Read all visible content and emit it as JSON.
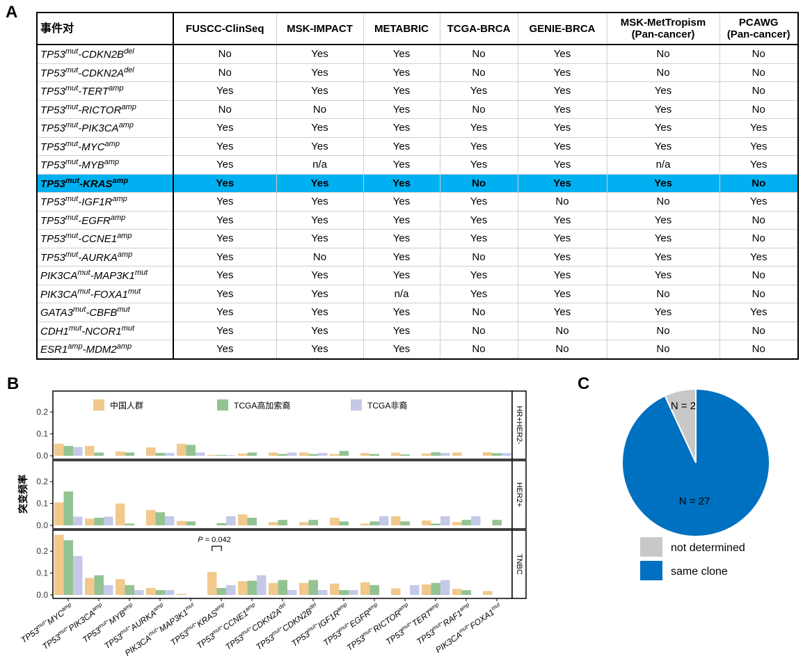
{
  "panels": {
    "a": "A",
    "b": "B",
    "c": "C"
  },
  "table": {
    "headers": [
      "事件对",
      [
        "FUSCC-ClinSeq"
      ],
      [
        "MSK-IMPACT"
      ],
      [
        "METABRIC"
      ],
      [
        "TCGA-BRCA"
      ],
      [
        "GENIE-BRCA"
      ],
      [
        "MSK-MetTropism",
        "(Pan-cancer)"
      ],
      [
        "PCAWG",
        "(Pan-cancer)"
      ]
    ],
    "rows": [
      {
        "a": "TP53",
        "as": "mut",
        "b": "CDKN2B",
        "bs": "del",
        "v": [
          "No",
          "Yes",
          "Yes",
          "No",
          "Yes",
          "No",
          "No"
        ]
      },
      {
        "a": "TP53",
        "as": "mut",
        "b": "CDKN2A",
        "bs": "del",
        "v": [
          "No",
          "Yes",
          "Yes",
          "No",
          "Yes",
          "No",
          "No"
        ]
      },
      {
        "a": "TP53",
        "as": "mut",
        "b": "TERT",
        "bs": "amp",
        "v": [
          "Yes",
          "Yes",
          "Yes",
          "Yes",
          "Yes",
          "Yes",
          "No"
        ]
      },
      {
        "a": "TP53",
        "as": "mut",
        "b": "RICTOR",
        "bs": "amp",
        "v": [
          "No",
          "No",
          "Yes",
          "No",
          "Yes",
          "Yes",
          "No"
        ]
      },
      {
        "a": "TP53",
        "as": "mut",
        "b": "PIK3CA",
        "bs": "amp",
        "v": [
          "Yes",
          "Yes",
          "Yes",
          "Yes",
          "Yes",
          "Yes",
          "Yes"
        ]
      },
      {
        "a": "TP53",
        "as": "mut",
        "b": "MYC",
        "bs": "amp",
        "v": [
          "Yes",
          "Yes",
          "Yes",
          "Yes",
          "Yes",
          "Yes",
          "Yes"
        ]
      },
      {
        "a": "TP53",
        "as": "mut",
        "b": "MYB",
        "bs": "amp",
        "v": [
          "Yes",
          "n/a",
          "Yes",
          "Yes",
          "Yes",
          "n/a",
          "Yes"
        ]
      },
      {
        "a": "TP53",
        "as": "mut",
        "b": "KRAS",
        "bs": "amp",
        "v": [
          "Yes",
          "Yes",
          "Yes",
          "No",
          "Yes",
          "Yes",
          "No"
        ],
        "highlight": true
      },
      {
        "a": "TP53",
        "as": "mut",
        "b": "IGF1R",
        "bs": "amp",
        "v": [
          "Yes",
          "Yes",
          "Yes",
          "Yes",
          "No",
          "No",
          "Yes"
        ]
      },
      {
        "a": "TP53",
        "as": "mut",
        "b": "EGFR",
        "bs": "amp",
        "v": [
          "Yes",
          "Yes",
          "Yes",
          "Yes",
          "Yes",
          "Yes",
          "No"
        ]
      },
      {
        "a": "TP53",
        "as": "mut",
        "b": "CCNE1",
        "bs": "amp",
        "v": [
          "Yes",
          "Yes",
          "Yes",
          "Yes",
          "Yes",
          "Yes",
          "No"
        ]
      },
      {
        "a": "TP53",
        "as": "mut",
        "b": "AURKA",
        "bs": "amp",
        "v": [
          "Yes",
          "No",
          "Yes",
          "No",
          "Yes",
          "Yes",
          "Yes"
        ]
      },
      {
        "a": "PIK3CA",
        "as": "mut",
        "b": "MAP3K1",
        "bs": "mut",
        "v": [
          "Yes",
          "Yes",
          "Yes",
          "Yes",
          "Yes",
          "Yes",
          "No"
        ]
      },
      {
        "a": "PIK3CA",
        "as": "mut",
        "b": "FOXA1",
        "bs": "mut",
        "v": [
          "Yes",
          "Yes",
          "n/a",
          "Yes",
          "Yes",
          "No",
          "No"
        ]
      },
      {
        "a": "GATA3",
        "as": "mut",
        "b": "CBFB",
        "bs": "mut",
        "v": [
          "Yes",
          "Yes",
          "Yes",
          "No",
          "Yes",
          "Yes",
          "Yes"
        ]
      },
      {
        "a": "CDH1",
        "as": "mut",
        "b": "NCOR1",
        "bs": "mut",
        "v": [
          "Yes",
          "Yes",
          "Yes",
          "No",
          "No",
          "No",
          "No"
        ]
      },
      {
        "a": "ESR1",
        "as": "amp",
        "b": "MDM2",
        "bs": "amp",
        "v": [
          "Yes",
          "Yes",
          "Yes",
          "No",
          "No",
          "No",
          "No"
        ]
      }
    ]
  },
  "chart_data": [
    {
      "type": "bar",
      "ylabel": "突变频率",
      "ylim": [
        0,
        0.28
      ],
      "yticks": [
        "0.0",
        "0.1",
        "0.2"
      ],
      "legend_position": "top",
      "categories": [
        {
          "a": "TP53",
          "as": "mut",
          "b": "MYC",
          "bs": "amp"
        },
        {
          "a": "TP53",
          "as": "mut",
          "b": "PIK3CA",
          "bs": "amp"
        },
        {
          "a": "TP53",
          "as": "mut",
          "b": "MYB",
          "bs": "amp"
        },
        {
          "a": "TP53",
          "as": "mut",
          "b": "AURKA",
          "bs": "amp"
        },
        {
          "a": "PIK3CA",
          "as": "mut",
          "b": "MAP3K1",
          "bs": "mut"
        },
        {
          "a": "TP53",
          "as": "mut",
          "b": "KRAS",
          "bs": "amp"
        },
        {
          "a": "TP53",
          "as": "mut",
          "b": "CCNE1",
          "bs": "amp"
        },
        {
          "a": "TP53",
          "as": "mut",
          "b": "CDKN2A",
          "bs": "del"
        },
        {
          "a": "TP53",
          "as": "mut",
          "b": "CDKN2B",
          "bs": "del"
        },
        {
          "a": "TP53",
          "as": "mut",
          "b": "IGF1R",
          "bs": "amp"
        },
        {
          "a": "TP53",
          "as": "mut",
          "b": "EGFR",
          "bs": "amp"
        },
        {
          "a": "TP53",
          "as": "mut",
          "b": "RICTOR",
          "bs": "amp"
        },
        {
          "a": "TP53",
          "as": "mut",
          "b": "TERT",
          "bs": "amp"
        },
        {
          "a": "TP53",
          "as": "mut",
          "b": "RAF1",
          "bs": "amp"
        },
        {
          "a": "PIK3CA",
          "as": "mut",
          "b": "FOXA1",
          "bs": "mut"
        }
      ],
      "series_names": [
        "中国人群",
        "TCGA高加索裔",
        "TCGA非裔"
      ],
      "series_colors": [
        "#f1c98d",
        "#93c393",
        "#c5c9e8"
      ],
      "facets": [
        {
          "name": "HR+HER2-",
          "series": [
            [
              0.055,
              0.045,
              0.02,
              0.038,
              0.055,
              0.004,
              0.01,
              0.015,
              0.015,
              0.008,
              0.012,
              0.014,
              0.01,
              0.015,
              0.016
            ],
            [
              0.045,
              0.015,
              0.015,
              0.013,
              0.05,
              0.004,
              0.015,
              0.008,
              0.008,
              0.022,
              0.008,
              0.006,
              0.016,
              0.0,
              0.012
            ],
            [
              0.04,
              0.0,
              0.0,
              0.013,
              0.015,
              0.003,
              0.0,
              0.015,
              0.013,
              0.0,
              0.0,
              0.0,
              0.013,
              0.0,
              0.012
            ]
          ]
        },
        {
          "name": "HER2+",
          "series": [
            [
              0.105,
              0.03,
              0.1,
              0.07,
              0.02,
              0.0,
              0.05,
              0.015,
              0.015,
              0.035,
              0.008,
              0.042,
              0.022,
              0.015,
              0.0
            ],
            [
              0.155,
              0.035,
              0.008,
              0.06,
              0.018,
              0.01,
              0.035,
              0.025,
              0.025,
              0.018,
              0.018,
              0.018,
              0.008,
              0.025,
              0.025
            ],
            [
              0.04,
              0.04,
              0.0,
              0.042,
              0.0,
              0.042,
              0.0,
              0.0,
              0.0,
              0.0,
              0.042,
              0.0,
              0.042,
              0.042,
              0.0
            ]
          ]
        },
        {
          "name": "TNBC",
          "series": [
            [
              0.275,
              0.078,
              0.072,
              0.032,
              0.005,
              0.105,
              0.063,
              0.055,
              0.055,
              0.052,
              0.058,
              0.03,
              0.048,
              0.028,
              0.018
            ],
            [
              0.25,
              0.09,
              0.045,
              0.022,
              0.0,
              0.032,
              0.065,
              0.068,
              0.068,
              0.022,
              0.045,
              0.0,
              0.055,
              0.022,
              0.0
            ],
            [
              0.178,
              0.045,
              0.022,
              0.022,
              0.0,
              0.045,
              0.09,
              0.022,
              0.022,
              0.022,
              0.0,
              0.045,
              0.068,
              0.0,
              0.0
            ]
          ]
        }
      ],
      "annotation": {
        "p_label": "P",
        "p_value": "= 0.042"
      }
    },
    {
      "type": "pie",
      "values": [
        2,
        27
      ],
      "labels": [
        "N = 2",
        "N = 27"
      ],
      "legend": [
        "not determined",
        "same clone"
      ],
      "colors": [
        "#c8c8c8",
        "#0070c0"
      ]
    }
  ]
}
